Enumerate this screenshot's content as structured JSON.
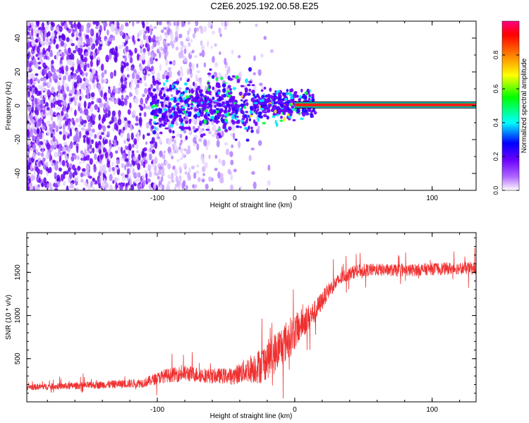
{
  "title": "C2E6.2025.192.00.58.E25",
  "chart_data": [
    {
      "type": "heatmap",
      "title": "C2E6.2025.192.00.58.E25",
      "xlabel": "Height of straight line (km)",
      "ylabel": "Frequency (Hz)",
      "xlim": [
        -195,
        132
      ],
      "ylim": [
        -50,
        50
      ],
      "x_ticks": [
        -100,
        0,
        100
      ],
      "x_tick_labels": [
        "-100",
        "0",
        "100"
      ],
      "y_ticks": [
        -40,
        -20,
        0,
        20,
        40
      ],
      "y_tick_labels": [
        "-40",
        "-20",
        "0",
        "20",
        "40"
      ],
      "grid": false,
      "colorbar": {
        "label": "Normalized spectral amplitude",
        "range": [
          0,
          1
        ],
        "ticks": [
          0.0,
          0.2,
          0.4,
          0.6,
          0.8
        ],
        "tick_labels": [
          "0.0",
          "0.2",
          "0.4",
          "0.6",
          "0.8"
        ],
        "colors": [
          "#ffffff",
          "#7b00ff",
          "#0000ff",
          "#00ffff",
          "#00ff00",
          "#ffff00",
          "#ff7f00",
          "#ff0000",
          "#ff0080"
        ]
      },
      "features": {
        "strong_line_frequency_hz": 0.5,
        "strong_line_start_km": 0,
        "strong_line_end_km": 132,
        "noise_region_km": [
          -195,
          -30
        ]
      }
    },
    {
      "type": "line",
      "xlabel": "Height of straight line (km)",
      "ylabel": "SNR (10 * v/v)",
      "xlim": [
        -195,
        132
      ],
      "ylim": [
        0,
        1960
      ],
      "x_ticks": [
        -100,
        0,
        100
      ],
      "x_tick_labels": [
        "-100",
        "0",
        "100"
      ],
      "y_ticks": [
        500,
        1000,
        1500
      ],
      "y_tick_labels": [
        "500",
        "1000",
        "1500"
      ],
      "grid": false,
      "line_color": "#f03030",
      "envelope": {
        "x": [
          -195,
          -150,
          -110,
          -95,
          -80,
          -60,
          -45,
          -35,
          -25,
          -15,
          -5,
          5,
          15,
          25,
          35,
          45,
          60,
          80,
          100,
          132
        ],
        "y_mean": [
          170,
          190,
          220,
          300,
          330,
          300,
          300,
          370,
          420,
          560,
          720,
          900,
          1050,
          1300,
          1450,
          1520,
          1530,
          1520,
          1540,
          1550
        ],
        "y_spread": [
          60,
          70,
          90,
          130,
          160,
          140,
          160,
          250,
          350,
          400,
          400,
          300,
          220,
          150,
          130,
          130,
          120,
          120,
          120,
          120
        ]
      }
    }
  ]
}
